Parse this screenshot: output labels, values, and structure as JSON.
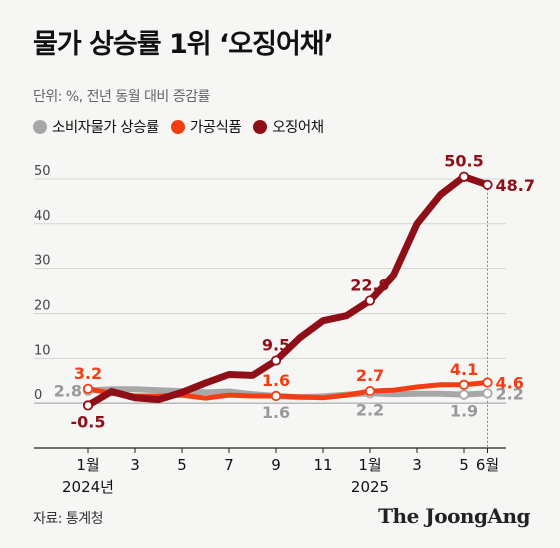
{
  "title": "물가 상승률 1위 ‘오징어채’",
  "subtitle": "단위: %, 전년 동월 대비 증감률",
  "source": "자료: 통계청",
  "brand": "The JoongAng",
  "legend": [
    {
      "label": "소비자물가 상승률",
      "color": "#a7a7a7"
    },
    {
      "label": "가공식품",
      "color": "#f43d13"
    },
    {
      "label": "오징어채",
      "color": "#8e0f17"
    }
  ],
  "chart_data": {
    "type": "line",
    "x": [
      "2024-01",
      "2024-02",
      "2024-03",
      "2024-04",
      "2024-05",
      "2024-06",
      "2024-07",
      "2024-08",
      "2024-09",
      "2024-10",
      "2024-11",
      "2024-12",
      "2025-01",
      "2025-02",
      "2025-03",
      "2025-04",
      "2025-05",
      "2025-06"
    ],
    "x_tick_labels": [
      "1월",
      "3",
      "5",
      "7",
      "9",
      "11",
      "1월",
      "3",
      "5",
      "6월"
    ],
    "x_tick_indices": [
      0,
      2,
      4,
      6,
      8,
      10,
      12,
      14,
      16,
      17
    ],
    "year_labels": [
      {
        "index": 0,
        "label": "2024년"
      },
      {
        "index": 12,
        "label": "2025"
      }
    ],
    "ylim": [
      -10,
      52
    ],
    "y_ticks": [
      0,
      10,
      20,
      30,
      40,
      50
    ],
    "grid": true,
    "series": [
      {
        "name": "소비자물가 상승률",
        "color": "#a7a7a7",
        "values": [
          2.8,
          3.1,
          3.1,
          2.9,
          2.7,
          2.4,
          2.6,
          2.0,
          1.6,
          1.3,
          1.5,
          1.9,
          2.2,
          2.0,
          2.1,
          2.1,
          1.9,
          2.2
        ],
        "labels": [
          {
            "index": 0,
            "text": "2.8",
            "pos": "left"
          },
          {
            "index": 8,
            "text": "1.6",
            "pos": "below"
          },
          {
            "index": 12,
            "text": "2.2",
            "pos": "below"
          },
          {
            "index": 16,
            "text": "1.9",
            "pos": "below"
          },
          {
            "index": 17,
            "text": "2.2",
            "pos": "right"
          }
        ]
      },
      {
        "name": "가공식품",
        "color": "#f43d13",
        "values": [
          3.2,
          2.2,
          1.6,
          1.6,
          1.8,
          1.1,
          1.8,
          1.6,
          1.6,
          1.4,
          1.2,
          1.8,
          2.7,
          2.9,
          3.6,
          4.1,
          4.1,
          4.6
        ],
        "labels": [
          {
            "index": 0,
            "text": "3.2",
            "pos": "above"
          },
          {
            "index": 8,
            "text": "1.6",
            "pos": "above"
          },
          {
            "index": 12,
            "text": "2.7",
            "pos": "above"
          },
          {
            "index": 16,
            "text": "4.1",
            "pos": "above"
          },
          {
            "index": 17,
            "text": "4.6",
            "pos": "right"
          }
        ]
      },
      {
        "name": "오징어채",
        "color": "#8e0f17",
        "values": [
          -0.5,
          2.6,
          1.2,
          0.8,
          2.4,
          4.5,
          6.4,
          6.2,
          9.5,
          14.5,
          18.4,
          19.5,
          22.9,
          28.5,
          40.0,
          46.5,
          50.5,
          48.7
        ],
        "labels": [
          {
            "index": 0,
            "text": "-0.5",
            "pos": "below"
          },
          {
            "index": 8,
            "text": "9.5",
            "pos": "above"
          },
          {
            "index": 12,
            "text": "22.9",
            "pos": "above"
          },
          {
            "index": 16,
            "text": "50.5",
            "pos": "above"
          },
          {
            "index": 17,
            "text": "48.7",
            "pos": "right"
          }
        ]
      }
    ]
  }
}
